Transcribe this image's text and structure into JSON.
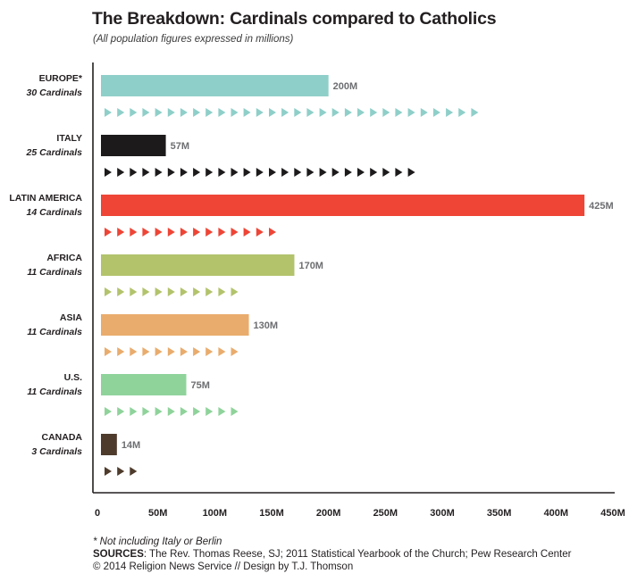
{
  "header": {
    "title": "The Breakdown: Cardinals compared to Catholics",
    "subtitle": "(All population figures expressed in millions)"
  },
  "colors": {
    "europe": "#8fcfc9",
    "italy": "#1c1a1b",
    "latin_america": "#ee4536",
    "africa": "#b2c36c",
    "asia": "#e9ac6d",
    "us": "#8fd39b",
    "canada": "#4e3b2c",
    "value_label": "#6d6e71",
    "axis": "#231f20"
  },
  "chart_data": {
    "type": "bar",
    "orientation": "horizontal",
    "unit_note": "(All population figures expressed in millions)",
    "categories": [
      "EUROPE*",
      "ITALY",
      "LATIN AMERICA",
      "AFRICA",
      "ASIA",
      "U.S.",
      "CANADA"
    ],
    "category_sublabels": [
      "30 Cardinals",
      "25 Cardinals",
      "14 Cardinals",
      "11 Cardinals",
      "11 Cardinals",
      "11 Cardinals",
      "3 Cardinals"
    ],
    "series": [
      {
        "values": [
          200,
          57,
          425,
          170,
          130,
          75,
          14
        ]
      }
    ],
    "value_labels": [
      "200M",
      "57M",
      "425M",
      "170M",
      "130M",
      "75M",
      "14M"
    ],
    "cardinals": [
      30,
      25,
      14,
      11,
      11,
      11,
      3
    ],
    "xlim": [
      0,
      450
    ],
    "x_ticks": [
      "0",
      "50M",
      "100M",
      "150M",
      "200M",
      "250M",
      "300M",
      "350M",
      "400M",
      "450M"
    ],
    "grid": false
  },
  "footer": {
    "note": "* Not including Italy or Berlin",
    "sources_label": "SOURCES",
    "sources_text": ": The Rev. Thomas Reese, SJ; 2011 Statistical Yearbook of the Church; Pew Research Center",
    "credit": "© 2014 Religion News Service // Design by T.J. Thomson"
  }
}
